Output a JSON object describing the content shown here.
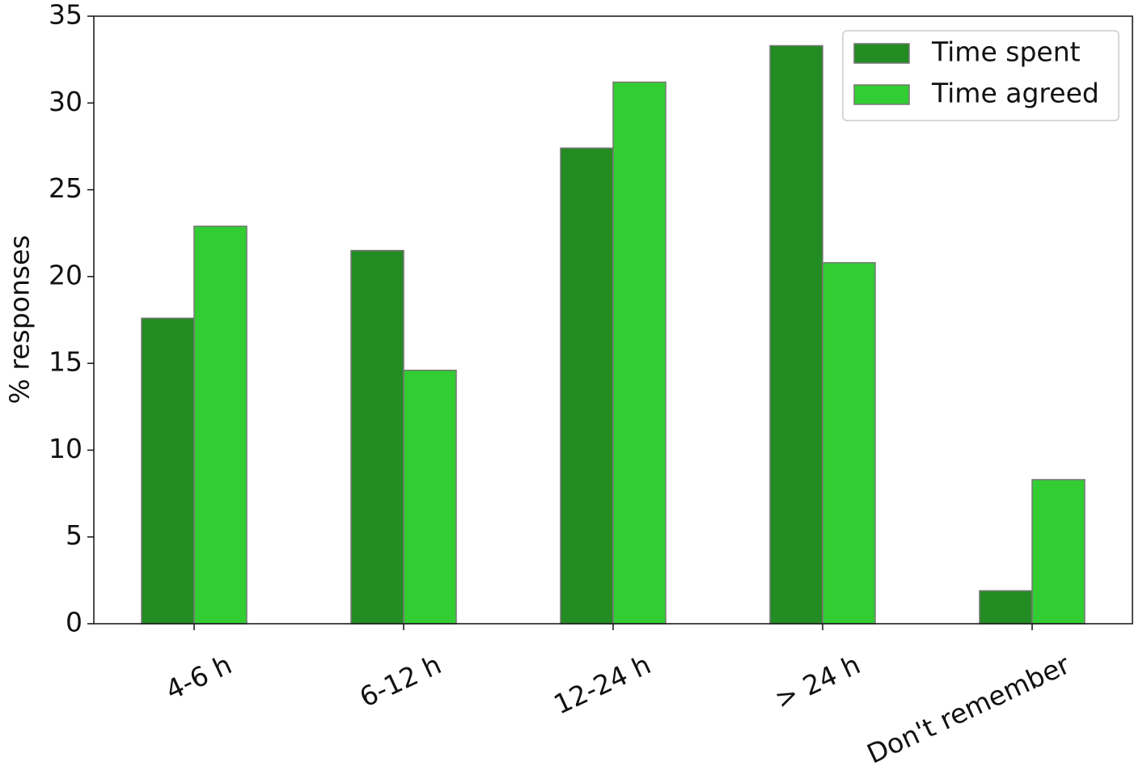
{
  "chart_data": {
    "type": "bar",
    "y_label": "% responses",
    "categories": [
      "4-6 h",
      "6-12 h",
      "12-24 h",
      "> 24 h",
      "Don't remember"
    ],
    "series": [
      {
        "name": "Time spent",
        "color": "#228b22",
        "values": [
          17.6,
          21.5,
          27.4,
          33.3,
          1.9
        ]
      },
      {
        "name": "Time agreed",
        "color": "#32cd32",
        "values": [
          22.9,
          14.6,
          31.2,
          20.8,
          8.3
        ]
      }
    ],
    "ylim": [
      0,
      35
    ],
    "yticks": [
      0,
      5,
      10,
      15,
      20,
      25,
      30,
      35
    ],
    "legend": "upper right",
    "grid": false
  }
}
